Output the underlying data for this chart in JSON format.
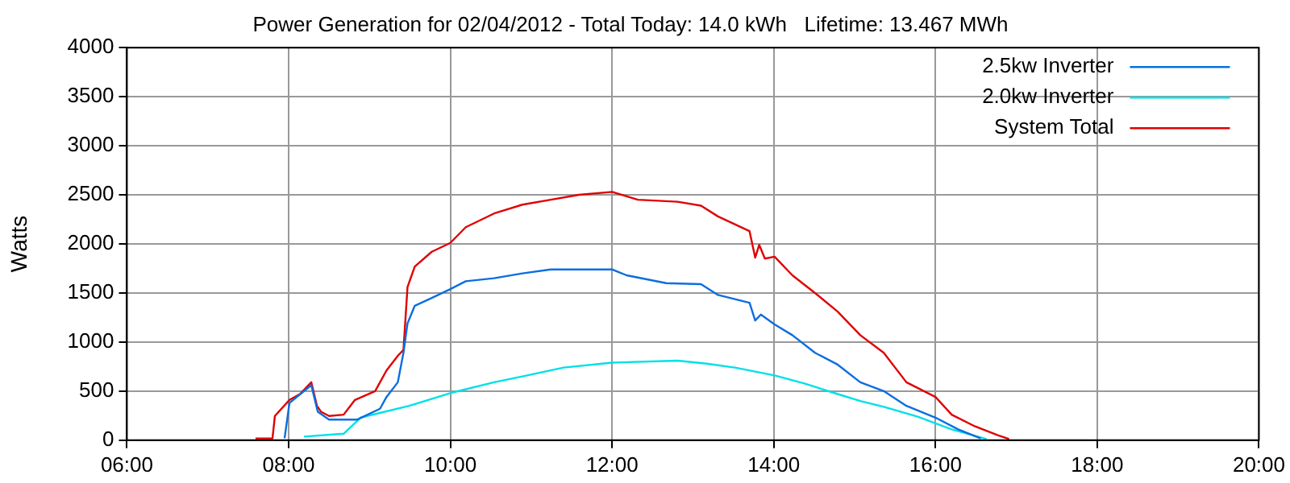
{
  "chart_data": {
    "type": "line",
    "title": "Power Generation for 02/04/2012 - Total Today: 14.0 kWh   Lifetime: 13.467 MWh",
    "ylabel": "Watts",
    "xlim": [
      6,
      20
    ],
    "xticks": [
      {
        "value": 6,
        "label": "06:00"
      },
      {
        "value": 8,
        "label": "08:00"
      },
      {
        "value": 10,
        "label": "10:00"
      },
      {
        "value": 12,
        "label": "12:00"
      },
      {
        "value": 14,
        "label": "14:00"
      },
      {
        "value": 16,
        "label": "16:00"
      },
      {
        "value": 18,
        "label": "18:00"
      },
      {
        "value": 20,
        "label": "20:00"
      }
    ],
    "ylim": [
      0,
      4000
    ],
    "yticks": [
      0,
      500,
      1000,
      1500,
      2000,
      2500,
      3000,
      3500,
      4000
    ],
    "grid": true,
    "legend": "top right",
    "marker": "none",
    "line_style": "solid",
    "series": [
      {
        "name": "2.5kw Inverter",
        "color": "#0a6ee0",
        "x": [
          7.95,
          8.01,
          8.28,
          8.36,
          8.5,
          8.85,
          9.13,
          9.21,
          9.35,
          9.42,
          9.47,
          9.56,
          9.77,
          10,
          10.19,
          10.54,
          10.89,
          11.24,
          11.59,
          12,
          12.18,
          12.67,
          13.1,
          13.31,
          13.7,
          13.77,
          13.84,
          14.01,
          14.23,
          14.51,
          14.79,
          15.07,
          15.36,
          15.64,
          16,
          16.28,
          16.56
        ],
        "values": [
          20,
          380,
          560,
          290,
          210,
          210,
          320,
          440,
          590,
          890,
          1190,
          1370,
          1450,
          1540,
          1620,
          1650,
          1700,
          1740,
          1740,
          1740,
          1680,
          1600,
          1590,
          1480,
          1400,
          1220,
          1280,
          1180,
          1070,
          890,
          770,
          590,
          500,
          350,
          230,
          110,
          18
        ]
      },
      {
        "name": "2.0kw Inverter",
        "color": "#00e0e8",
        "x": [
          8.19,
          8.68,
          8.89,
          9.49,
          10,
          10.54,
          10.89,
          11.4,
          12,
          12.81,
          13.17,
          13.52,
          14.01,
          14.37,
          14.79,
          15.07,
          15.36,
          15.78,
          16.2,
          16.63
        ],
        "values": [
          36,
          66,
          230,
          350,
          480,
          590,
          650,
          740,
          790,
          810,
          780,
          740,
          660,
          580,
          470,
          400,
          340,
          240,
          110,
          12
        ]
      },
      {
        "name": "System Total",
        "color": "#e00000",
        "x": [
          7.59,
          7.8,
          7.83,
          8.01,
          8.14,
          8.28,
          8.35,
          8.4,
          8.5,
          8.68,
          8.82,
          9.07,
          9.21,
          9.35,
          9.42,
          9.47,
          9.56,
          9.77,
          10,
          10.19,
          10.54,
          10.89,
          11.24,
          11.59,
          12,
          12.32,
          12.81,
          13.1,
          13.31,
          13.7,
          13.77,
          13.82,
          13.89,
          14.01,
          14.23,
          14.51,
          14.79,
          15.07,
          15.36,
          15.64,
          16,
          16.2,
          16.49,
          16.77,
          16.91
        ],
        "values": [
          18,
          18,
          247,
          410,
          470,
          590,
          350,
          290,
          247,
          260,
          410,
          500,
          710,
          860,
          920,
          1560,
          1770,
          1920,
          2010,
          2170,
          2310,
          2400,
          2450,
          2500,
          2530,
          2450,
          2430,
          2390,
          2280,
          2130,
          1860,
          1990,
          1850,
          1870,
          1680,
          1500,
          1310,
          1070,
          890,
          590,
          440,
          260,
          140,
          50,
          12
        ]
      }
    ]
  }
}
